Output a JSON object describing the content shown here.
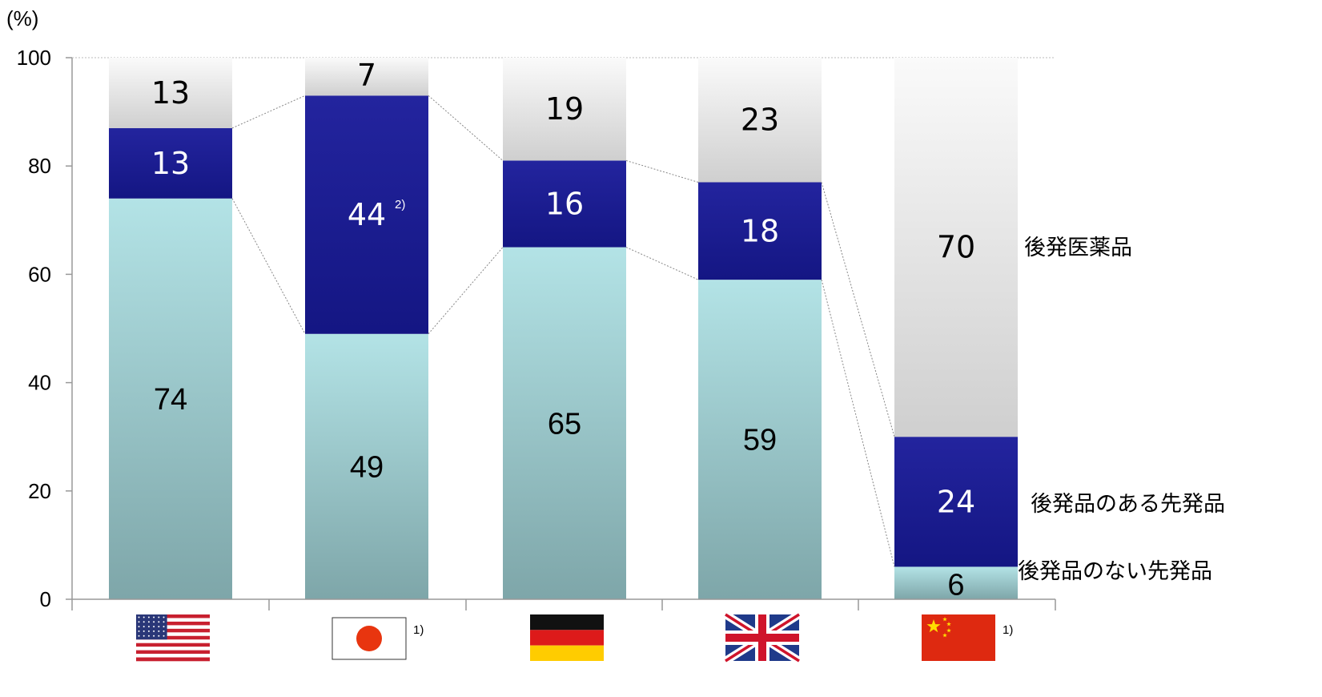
{
  "chart_data": {
    "type": "bar",
    "stacked": true,
    "unit_label": "(%)",
    "ylim": [
      0,
      100
    ],
    "yticks": [
      0,
      20,
      40,
      60,
      80,
      100
    ],
    "categories": [
      "US",
      "Japan",
      "Germany",
      "UK",
      "China"
    ],
    "category_notes": [
      "",
      "1)",
      "",
      "",
      "1)"
    ],
    "series": [
      {
        "name": "後発品のない先発品",
        "values": [
          74,
          49,
          65,
          59,
          6
        ],
        "color": "#a9d8dc"
      },
      {
        "name": "後発品のある先発品",
        "values": [
          13,
          44,
          16,
          18,
          24
        ],
        "color": "#1e1f96"
      },
      {
        "name": "後発医薬品",
        "values": [
          13,
          7,
          19,
          23,
          70
        ],
        "color": "#e3e3e3"
      }
    ],
    "value_notes": {
      "Japan": {
        "後発品のある先発品": "2)"
      }
    }
  },
  "flags": [
    {
      "country": "US",
      "icon": "us-flag-icon"
    },
    {
      "country": "Japan",
      "icon": "japan-flag-icon"
    },
    {
      "country": "Germany",
      "icon": "germany-flag-icon"
    },
    {
      "country": "UK",
      "icon": "uk-flag-icon"
    },
    {
      "country": "China",
      "icon": "china-flag-icon"
    }
  ]
}
